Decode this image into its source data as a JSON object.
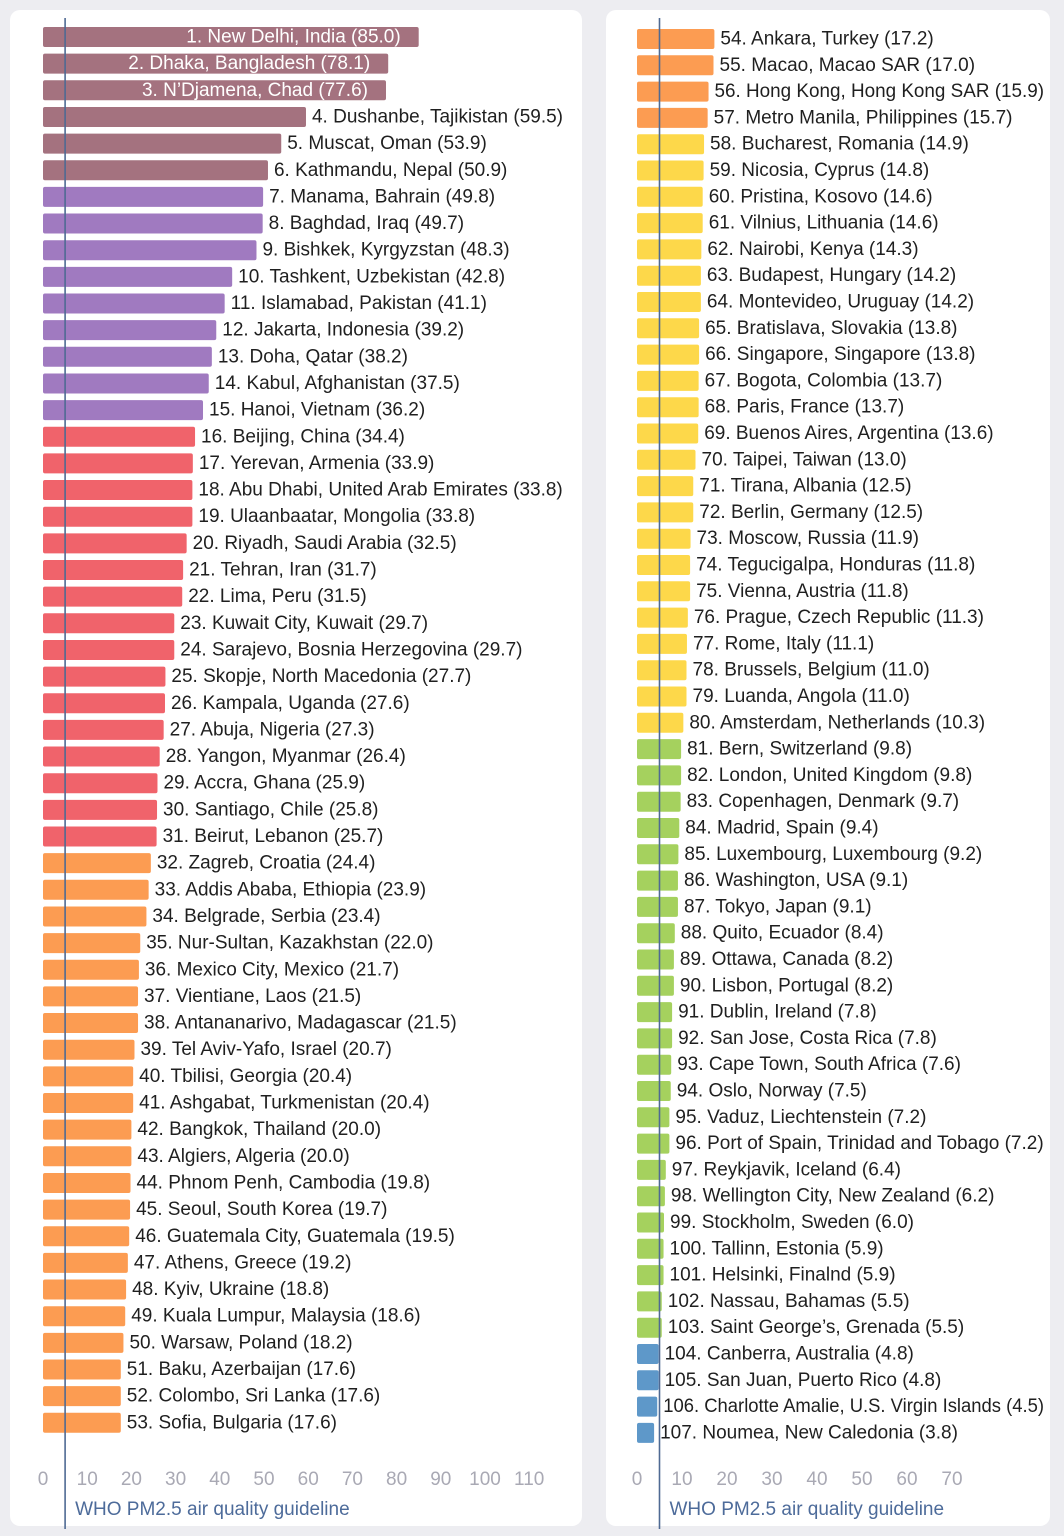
{
  "chart_data": [
    {
      "type": "bar",
      "orientation": "horizontal",
      "x_ticks": [
        "0",
        "10",
        "20",
        "30",
        "40",
        "50",
        "60",
        "70",
        "80",
        "90",
        "100",
        "110"
      ],
      "guideline": {
        "value": 5,
        "label": "WHO PM2.5 air quality guideline"
      },
      "bars": [
        {
          "label": "1. New Delhi, India (85.0)",
          "value": 85.0,
          "color": "#a4727f",
          "inside": true
        },
        {
          "label": "2. Dhaka, Bangladesh (78.1)",
          "value": 78.1,
          "color": "#a4727f",
          "inside": true
        },
        {
          "label": "3. N’Djamena, Chad  (77.6)",
          "value": 77.6,
          "color": "#a4727f",
          "inside": true
        },
        {
          "label": "4. Dushanbe, Tajikistan (59.5)",
          "value": 59.5,
          "color": "#a4727f"
        },
        {
          "label": "5. Muscat, Oman (53.9)",
          "value": 53.9,
          "color": "#a4727f"
        },
        {
          "label": "6. Kathmandu, Nepal (50.9)",
          "value": 50.9,
          "color": "#a4727f"
        },
        {
          "label": "7. Manama, Bahrain (49.8)",
          "value": 49.8,
          "color": "#a07ac0"
        },
        {
          "label": "8. Baghdad, Iraq (49.7)",
          "value": 49.7,
          "color": "#a07ac0"
        },
        {
          "label": "9. Bishkek, Kyrgyzstan (48.3)",
          "value": 48.3,
          "color": "#a07ac0"
        },
        {
          "label": "10. Tashkent, Uzbekistan (42.8)",
          "value": 42.8,
          "color": "#a07ac0"
        },
        {
          "label": "11. Islamabad, Pakistan (41.1)",
          "value": 41.1,
          "color": "#a07ac0"
        },
        {
          "label": "12. Jakarta, Indonesia (39.2)",
          "value": 39.2,
          "color": "#a07ac0"
        },
        {
          "label": "13. Doha, Qatar (38.2)",
          "value": 38.2,
          "color": "#a07ac0"
        },
        {
          "label": "14. Kabul, Afghanistan (37.5)",
          "value": 37.5,
          "color": "#a07ac0"
        },
        {
          "label": "15. Hanoi, Vietnam (36.2)",
          "value": 36.2,
          "color": "#a07ac0"
        },
        {
          "label": "16. Beijing, China (34.4)",
          "value": 34.4,
          "color": "#f0636b"
        },
        {
          "label": "17. Yerevan, Armenia (33.9)",
          "value": 33.9,
          "color": "#f0636b"
        },
        {
          "label": "18. Abu Dhabi, United Arab Emirates (33.8)",
          "value": 33.8,
          "color": "#f0636b"
        },
        {
          "label": "19. Ulaanbaatar, Mongolia (33.8)",
          "value": 33.8,
          "color": "#f0636b"
        },
        {
          "label": "20. Riyadh, Saudi Arabia (32.5)",
          "value": 32.5,
          "color": "#f0636b"
        },
        {
          "label": "21. Tehran, Iran (31.7)",
          "value": 31.7,
          "color": "#f0636b"
        },
        {
          "label": "22. Lima, Peru (31.5)",
          "value": 31.5,
          "color": "#f0636b"
        },
        {
          "label": "23. Kuwait City, Kuwait (29.7)",
          "value": 29.7,
          "color": "#f0636b"
        },
        {
          "label": "24. Sarajevo, Bosnia Herzegovina (29.7)",
          "value": 29.7,
          "color": "#f0636b"
        },
        {
          "label": "25. Skopje, North Macedonia (27.7)",
          "value": 27.7,
          "color": "#f0636b"
        },
        {
          "label": "26. Kampala, Uganda (27.6)",
          "value": 27.6,
          "color": "#f0636b"
        },
        {
          "label": "27. Abuja, Nigeria (27.3)",
          "value": 27.3,
          "color": "#f0636b"
        },
        {
          "label": "28. Yangon, Myanmar (26.4)",
          "value": 26.4,
          "color": "#f0636b"
        },
        {
          "label": "29. Accra, Ghana (25.9)",
          "value": 25.9,
          "color": "#f0636b"
        },
        {
          "label": "30. Santiago, Chile (25.8)",
          "value": 25.8,
          "color": "#f0636b"
        },
        {
          "label": "31. Beirut, Lebanon (25.7)",
          "value": 25.7,
          "color": "#f0636b"
        },
        {
          "label": "32. Zagreb, Croatia (24.4)",
          "value": 24.4,
          "color": "#fc9c52"
        },
        {
          "label": "33. Addis Ababa, Ethiopia (23.9)",
          "value": 23.9,
          "color": "#fc9c52"
        },
        {
          "label": "34. Belgrade, Serbia (23.4)",
          "value": 23.4,
          "color": "#fc9c52"
        },
        {
          "label": "35. Nur-Sultan, Kazakhstan (22.0)",
          "value": 22.0,
          "color": "#fc9c52"
        },
        {
          "label": "36. Mexico City, Mexico (21.7)",
          "value": 21.7,
          "color": "#fc9c52"
        },
        {
          "label": "37. Vientiane, Laos (21.5)",
          "value": 21.5,
          "color": "#fc9c52"
        },
        {
          "label": "38. Antananarivo, Madagascar (21.5)",
          "value": 21.5,
          "color": "#fc9c52"
        },
        {
          "label": "39. Tel Aviv-Yafo, Israel (20.7)",
          "value": 20.7,
          "color": "#fc9c52"
        },
        {
          "label": "40. Tbilisi, Georgia (20.4)",
          "value": 20.4,
          "color": "#fc9c52"
        },
        {
          "label": "41. Ashgabat, Turkmenistan (20.4)",
          "value": 20.4,
          "color": "#fc9c52"
        },
        {
          "label": "42. Bangkok, Thailand (20.0)",
          "value": 20.0,
          "color": "#fc9c52"
        },
        {
          "label": "43. Algiers, Algeria (20.0)",
          "value": 20.0,
          "color": "#fc9c52"
        },
        {
          "label": "44. Phnom Penh, Cambodia (19.8)",
          "value": 19.8,
          "color": "#fc9c52"
        },
        {
          "label": "45. Seoul, South Korea (19.7)",
          "value": 19.7,
          "color": "#fc9c52"
        },
        {
          "label": "46. Guatemala City, Guatemala (19.5)",
          "value": 19.5,
          "color": "#fc9c52"
        },
        {
          "label": "47. Athens, Greece (19.2)",
          "value": 19.2,
          "color": "#fc9c52"
        },
        {
          "label": "48. Kyiv, Ukraine (18.8)",
          "value": 18.8,
          "color": "#fc9c52"
        },
        {
          "label": "49. Kuala Lumpur, Malaysia (18.6)",
          "value": 18.6,
          "color": "#fc9c52"
        },
        {
          "label": "50. Warsaw, Poland (18.2)",
          "value": 18.2,
          "color": "#fc9c52"
        },
        {
          "label": "51. Baku, Azerbaijan (17.6)",
          "value": 17.6,
          "color": "#fc9c52"
        },
        {
          "label": "52. Colombo, Sri Lanka (17.6)",
          "value": 17.6,
          "color": "#fc9c52"
        },
        {
          "label": "53. Sofia, Bulgaria (17.6)",
          "value": 17.6,
          "color": "#fc9c52"
        }
      ]
    },
    {
      "type": "bar",
      "orientation": "horizontal",
      "x_ticks": [
        "0",
        "10",
        "20",
        "30",
        "40",
        "50",
        "60",
        "70"
      ],
      "guideline": {
        "value": 5,
        "label": "WHO PM2.5 air quality guideline"
      },
      "bars": [
        {
          "label": "54. Ankara, Turkey (17.2)",
          "value": 17.2,
          "color": "#fc9c52"
        },
        {
          "label": "55. Macao, Macao SAR (17.0)",
          "value": 17.0,
          "color": "#fc9c52"
        },
        {
          "label": "56. Hong Kong, Hong Kong SAR (15.9)",
          "value": 15.9,
          "color": "#fc9c52"
        },
        {
          "label": "57. Metro Manila, Philippines (15.7)",
          "value": 15.7,
          "color": "#fc9c52"
        },
        {
          "label": "58. Bucharest, Romania (14.9)",
          "value": 14.9,
          "color": "#fdd84a"
        },
        {
          "label": "59. Nicosia, Cyprus (14.8)",
          "value": 14.8,
          "color": "#fdd84a"
        },
        {
          "label": "60. Pristina, Kosovo (14.6)",
          "value": 14.6,
          "color": "#fdd84a"
        },
        {
          "label": "61. Vilnius, Lithuania (14.6)",
          "value": 14.6,
          "color": "#fdd84a"
        },
        {
          "label": "62. Nairobi, Kenya (14.3)",
          "value": 14.3,
          "color": "#fdd84a"
        },
        {
          "label": "63. Budapest, Hungary (14.2)",
          "value": 14.2,
          "color": "#fdd84a"
        },
        {
          "label": "64. Montevideo, Uruguay (14.2)",
          "value": 14.2,
          "color": "#fdd84a"
        },
        {
          "label": "65. Bratislava, Slovakia (13.8)",
          "value": 13.8,
          "color": "#fdd84a"
        },
        {
          "label": "66. Singapore, Singapore (13.8)",
          "value": 13.8,
          "color": "#fdd84a"
        },
        {
          "label": "67. Bogota, Colombia (13.7)",
          "value": 13.7,
          "color": "#fdd84a"
        },
        {
          "label": "68. Paris, France (13.7)",
          "value": 13.7,
          "color": "#fdd84a"
        },
        {
          "label": "69. Buenos Aires, Argentina (13.6)",
          "value": 13.6,
          "color": "#fdd84a"
        },
        {
          "label": "70. Taipei, Taiwan (13.0)",
          "value": 13.0,
          "color": "#fdd84a"
        },
        {
          "label": "71. Tirana, Albania (12.5)",
          "value": 12.5,
          "color": "#fdd84a"
        },
        {
          "label": "72. Berlin, Germany (12.5)",
          "value": 12.5,
          "color": "#fdd84a"
        },
        {
          "label": "73. Moscow, Russia (11.9)",
          "value": 11.9,
          "color": "#fdd84a"
        },
        {
          "label": "74. Tegucigalpa, Honduras (11.8)",
          "value": 11.8,
          "color": "#fdd84a"
        },
        {
          "label": "75. Vienna, Austria (11.8)",
          "value": 11.8,
          "color": "#fdd84a"
        },
        {
          "label": "76. Prague, Czech Republic (11.3)",
          "value": 11.3,
          "color": "#fdd84a"
        },
        {
          "label": "77. Rome, Italy (11.1)",
          "value": 11.1,
          "color": "#fdd84a"
        },
        {
          "label": "78. Brussels, Belgium (11.0)",
          "value": 11.0,
          "color": "#fdd84a"
        },
        {
          "label": "79. Luanda, Angola (11.0)",
          "value": 11.0,
          "color": "#fdd84a"
        },
        {
          "label": "80. Amsterdam, Netherlands (10.3)",
          "value": 10.3,
          "color": "#fdd84a"
        },
        {
          "label": "81. Bern, Switzerland (9.8)",
          "value": 9.8,
          "color": "#a5d15e"
        },
        {
          "label": "82. London, United Kingdom (9.8)",
          "value": 9.8,
          "color": "#a5d15e"
        },
        {
          "label": "83. Copenhagen, Denmark (9.7)",
          "value": 9.7,
          "color": "#a5d15e"
        },
        {
          "label": "84. Madrid, Spain (9.4)",
          "value": 9.4,
          "color": "#a5d15e"
        },
        {
          "label": "85. Luxembourg, Luxembourg (9.2)",
          "value": 9.2,
          "color": "#a5d15e"
        },
        {
          "label": "86. Washington, USA (9.1)",
          "value": 9.1,
          "color": "#a5d15e"
        },
        {
          "label": "87. Tokyo, Japan (9.1)",
          "value": 9.1,
          "color": "#a5d15e"
        },
        {
          "label": "88. Quito, Ecuador (8.4)",
          "value": 8.4,
          "color": "#a5d15e"
        },
        {
          "label": "89. Ottawa, Canada (8.2)",
          "value": 8.2,
          "color": "#a5d15e"
        },
        {
          "label": "90. Lisbon, Portugal (8.2)",
          "value": 8.2,
          "color": "#a5d15e"
        },
        {
          "label": "91. Dublin, Ireland (7.8)",
          "value": 7.8,
          "color": "#a5d15e"
        },
        {
          "label": "92. San Jose, Costa Rica (7.8)",
          "value": 7.8,
          "color": "#a5d15e"
        },
        {
          "label": "93. Cape Town, South Africa (7.6)",
          "value": 7.6,
          "color": "#a5d15e"
        },
        {
          "label": "94. Oslo, Norway (7.5)",
          "value": 7.5,
          "color": "#a5d15e"
        },
        {
          "label": "95. Vaduz, Liechtenstein (7.2)",
          "value": 7.2,
          "color": "#a5d15e"
        },
        {
          "label": "96. Port of Spain, Trinidad and Tobago (7.2)",
          "value": 7.2,
          "color": "#a5d15e"
        },
        {
          "label": "97. Reykjavik, Iceland (6.4)",
          "value": 6.4,
          "color": "#a5d15e"
        },
        {
          "label": "98. Wellington City, New Zealand (6.2)",
          "value": 6.2,
          "color": "#a5d15e"
        },
        {
          "label": "99. Stockholm, Sweden (6.0)",
          "value": 6.0,
          "color": "#a5d15e"
        },
        {
          "label": "100. Tallinn, Estonia (5.9)",
          "value": 5.9,
          "color": "#a5d15e"
        },
        {
          "label": "101. Helsinki, Finalnd (5.9)",
          "value": 5.9,
          "color": "#a5d15e"
        },
        {
          "label": "102. Nassau, Bahamas (5.5)",
          "value": 5.5,
          "color": "#a5d15e"
        },
        {
          "label": "103. Saint George’s, Grenada (5.5)",
          "value": 5.5,
          "color": "#a5d15e"
        },
        {
          "label": "104. Canberra, Australia (4.8)",
          "value": 4.8,
          "color": "#5e98c9"
        },
        {
          "label": "105. San Juan, Puerto Rico (4.8)",
          "value": 4.8,
          "color": "#5e98c9"
        },
        {
          "label": "106. Charlotte Amalie, U.S. Virgin Islands (4.5)",
          "value": 4.5,
          "color": "#5e98c9"
        },
        {
          "label": "107. Noumea, New Caledonia (3.8)",
          "value": 3.8,
          "color": "#5e98c9"
        }
      ]
    }
  ]
}
